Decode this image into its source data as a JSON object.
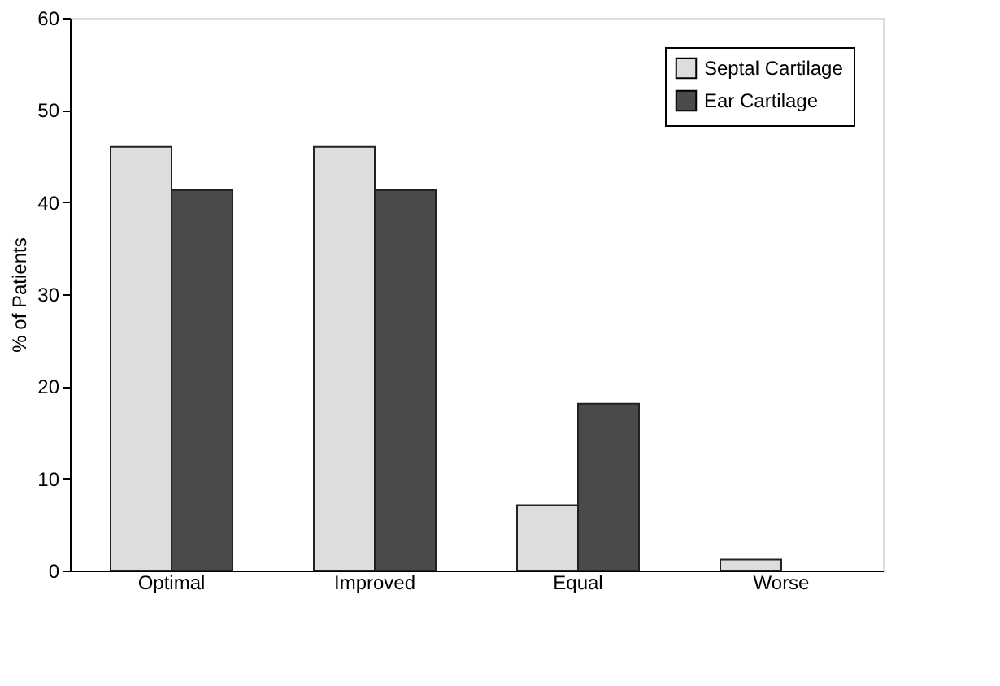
{
  "chart_data": {
    "type": "bar",
    "ylabel": "% of Patients",
    "categories": [
      "Optimal",
      "Improved",
      "Equal",
      "Worse"
    ],
    "series": [
      {
        "name": "Septal Cartilage",
        "color": "#dcdddf",
        "values": [
          46.0,
          46.0,
          7.1,
          1.2
        ]
      },
      {
        "name": "Ear Cartilage",
        "color": "#4a4a4c",
        "values": [
          41.3,
          41.3,
          18.1,
          null
        ]
      }
    ],
    "ylim": [
      0,
      60
    ],
    "yticks": [
      0,
      10,
      20,
      30,
      40,
      50,
      60
    ],
    "grid": false,
    "legend": "top right"
  }
}
